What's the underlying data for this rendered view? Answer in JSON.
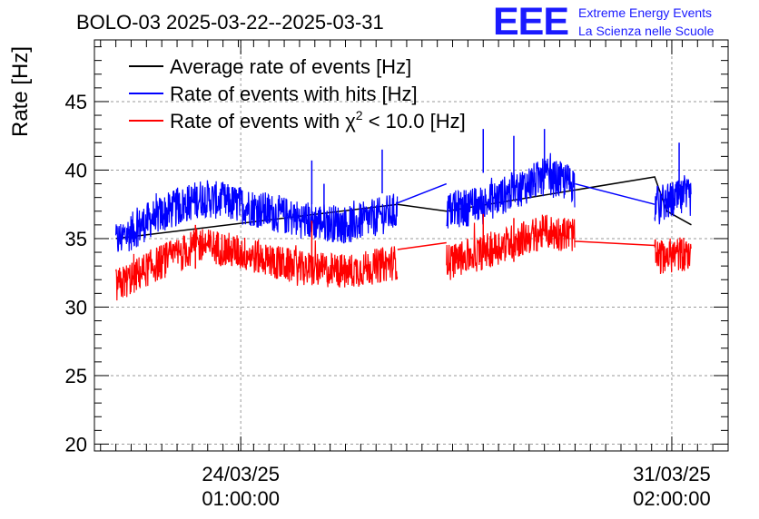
{
  "chart_data": {
    "type": "line",
    "title": "BOLO-03 2025-03-22--2025-03-31",
    "ylabel": "Rate [Hz]",
    "xlabel": "",
    "ylim": [
      19.5,
      49.5
    ],
    "y_ticks": [
      "20",
      "25",
      "30",
      "35",
      "40",
      "45"
    ],
    "y_tick_values": [
      20,
      25,
      30,
      35,
      40,
      45
    ],
    "x_tick_labels": [
      {
        "date": "24/03/25",
        "time": "01:00:00",
        "day": 2.04
      },
      {
        "date": "31/03/25",
        "time": "02:00:00",
        "day": 9.08
      }
    ],
    "xlim_days": [
      -0.35,
      10.0
    ],
    "grid": true,
    "legend_position": "top-left",
    "series": [
      {
        "name": "Average rate of events [Hz]",
        "color": "#000000",
        "segments": [
          {
            "x": [
              0.0,
              4.6,
              5.4,
              8.8,
              9.0,
              9.4
            ],
            "y": [
              35.0,
              37.5,
              37.0,
              39.5,
              37.0,
              36.0
            ]
          }
        ]
      },
      {
        "name": "Rate of events with hits [Hz]",
        "color": "#0000ff",
        "segments": [
          {
            "start": 0.0,
            "end": 4.6,
            "points": [
              [
                0.0,
                34.8
              ],
              [
                0.6,
                36.5
              ],
              [
                1.4,
                38.0
              ],
              [
                2.2,
                37.3
              ],
              [
                3.0,
                36.4
              ],
              [
                3.8,
                36.0
              ],
              [
                4.6,
                37.0
              ]
            ]
          },
          {
            "start": 5.4,
            "end": 7.5,
            "points": [
              [
                5.4,
                37.0
              ],
              [
                6.0,
                37.5
              ],
              [
                6.5,
                38.5
              ],
              [
                7.0,
                39.5
              ],
              [
                7.5,
                39.0
              ]
            ]
          },
          {
            "start": 8.8,
            "end": 9.4,
            "points": [
              [
                8.8,
                37.5
              ],
              [
                9.1,
                37.8
              ],
              [
                9.4,
                38.0
              ]
            ]
          }
        ],
        "bridges": [
          [
            4.6,
            37.6,
            5.4,
            39.0
          ],
          [
            7.5,
            39.0,
            8.8,
            37.5
          ]
        ],
        "spikes": [
          [
            3.2,
            40.7
          ],
          [
            4.35,
            41.5
          ],
          [
            6.0,
            43.0
          ],
          [
            6.5,
            42.5
          ],
          [
            7.0,
            43.0
          ],
          [
            9.2,
            42.0
          ],
          [
            3.4,
            39.0
          ]
        ]
      },
      {
        "name": "Rate of events with χ2 < 10.0 [Hz]",
        "color": "#ff0000",
        "segments": [
          {
            "start": 0.0,
            "end": 4.6,
            "points": [
              [
                0.0,
                31.5
              ],
              [
                0.6,
                33.0
              ],
              [
                1.4,
                34.6
              ],
              [
                2.2,
                33.8
              ],
              [
                3.0,
                32.8
              ],
              [
                3.8,
                32.6
              ],
              [
                4.6,
                33.3
              ]
            ]
          },
          {
            "start": 5.4,
            "end": 7.5,
            "points": [
              [
                5.4,
                33.3
              ],
              [
                6.0,
                34.0
              ],
              [
                6.5,
                34.8
              ],
              [
                7.0,
                35.5
              ],
              [
                7.5,
                35.3
              ]
            ]
          },
          {
            "start": 8.8,
            "end": 9.4,
            "points": [
              [
                8.8,
                33.6
              ],
              [
                9.1,
                33.8
              ],
              [
                9.4,
                34.0
              ]
            ]
          }
        ],
        "bridges": [
          [
            4.6,
            34.2,
            5.4,
            34.7
          ],
          [
            7.5,
            34.8,
            8.8,
            34.5
          ]
        ],
        "spikes": [
          [
            3.2,
            36.3
          ],
          [
            6.0,
            36.8
          ],
          [
            6.5,
            36.5
          ],
          [
            1.3,
            36.0
          ]
        ]
      }
    ]
  },
  "header": {
    "title": "BOLO-03 2025-03-22--2025-03-31",
    "logo_mark": "EEE",
    "logo_line1": "Extreme Energy Events",
    "logo_line2": "La Scienza nelle Scuole"
  },
  "legend": {
    "item1": "Average rate of events [Hz]",
    "item2": "Rate of events with hits [Hz]",
    "item3_prefix": "Rate of events with ",
    "item3_symbol": "χ",
    "item3_sup": "2",
    "item3_suffix": " < 10.0 [Hz]"
  },
  "colors": {
    "black": "#000000",
    "blue": "#0000ff",
    "red": "#ff0000",
    "logo": "#1a1aff",
    "grid": "#9a9a9a"
  }
}
